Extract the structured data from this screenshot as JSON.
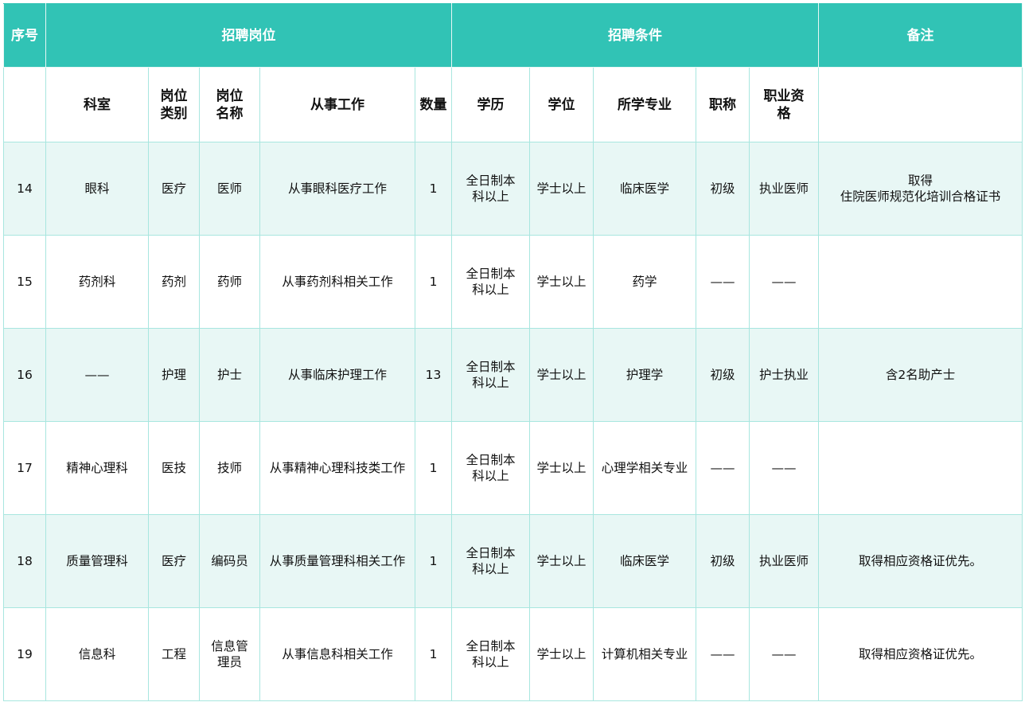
{
  "header": {
    "top": [
      "序号",
      "招聘岗位",
      "招聘条件",
      "备注"
    ],
    "sub": [
      "科室",
      "岗位类别",
      "岗位名称",
      "从事工作",
      "数量",
      "学历",
      "学位",
      "所学专业",
      "职称",
      "职业资格"
    ]
  },
  "rows": [
    [
      "14",
      "眼科",
      "医疗",
      "医师",
      "从事眼科医疗工作",
      "1",
      "全日制本科以上",
      "学士以上",
      "临床医学",
      "初级",
      "执业医师",
      "取得\n住院医师规范化培训合格证书"
    ],
    [
      "15",
      "药剂科",
      "药剂",
      "药师",
      "从事药剂科相关工作",
      "1",
      "全日制本科以上",
      "学士以上",
      "药学",
      "——",
      "——",
      ""
    ],
    [
      "16",
      "——",
      "护理",
      "护士",
      "从事临床护理工作",
      "13",
      "全日制本科以上",
      "学士以上",
      "护理学",
      "初级",
      "护士执业",
      "含2名助产士"
    ],
    [
      "17",
      "精神心理科",
      "医技",
      "技师",
      "从事精神心理科技类工作",
      "1",
      "全日制本科以上",
      "学士以上",
      "心理学相关专业",
      "——",
      "——",
      ""
    ],
    [
      "18",
      "质量管理科",
      "医疗",
      "编码员",
      "从事质量管理科相关工作",
      "1",
      "全日制本科以上",
      "学士以上",
      "临床医学",
      "初级",
      "执业医师",
      "取得相应资格证优先。"
    ],
    [
      "19",
      "信息科",
      "工程",
      "信息管理员",
      "从事信息科相关工作",
      "1",
      "全日制本科以上",
      "学士以上",
      "计算机相关专业",
      "——",
      "——",
      "取得相应资格证优先。"
    ]
  ],
  "colors": {
    "header_bg": "#31c3b5",
    "alt_row_bg": "#e8f7f5",
    "border": "#a8e6df"
  }
}
